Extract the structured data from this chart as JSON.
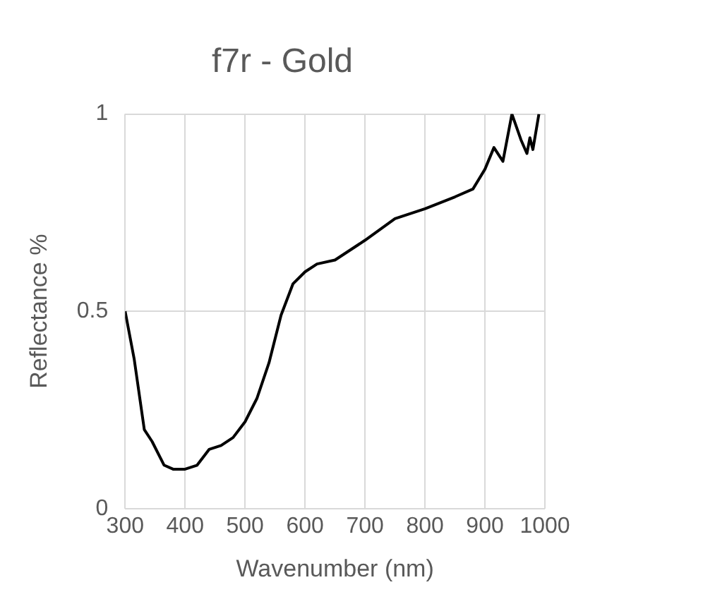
{
  "chart_data": {
    "type": "line",
    "title": "f7r - Gold",
    "xlabel": "Wavenumber (nm)",
    "ylabel": "Reflectance %",
    "x": [
      300,
      305,
      315,
      332,
      345,
      365,
      380,
      400,
      420,
      440,
      460,
      480,
      500,
      520,
      540,
      560,
      580,
      600,
      620,
      650,
      700,
      750,
      800,
      850,
      880,
      900,
      915,
      930,
      945,
      960,
      970,
      975,
      980,
      990
    ],
    "series": [
      {
        "color": "#000000",
        "values": [
          0.5,
          0.46,
          0.38,
          0.2,
          0.17,
          0.11,
          0.1,
          0.1,
          0.11,
          0.15,
          0.16,
          0.18,
          0.22,
          0.28,
          0.37,
          0.49,
          0.57,
          0.6,
          0.62,
          0.63,
          0.68,
          0.735,
          0.76,
          0.79,
          0.81,
          0.86,
          0.915,
          0.88,
          1.0,
          0.935,
          0.9,
          0.94,
          0.91,
          1.0
        ]
      }
    ],
    "xlim": [
      300,
      1000
    ],
    "xticks": [
      300,
      400,
      500,
      600,
      700,
      800,
      900,
      1000
    ],
    "ylim": [
      0,
      1
    ],
    "yticks": [
      0,
      0.5,
      1
    ],
    "grid": true,
    "legend": false,
    "marker": "none",
    "line_style": "solid"
  }
}
